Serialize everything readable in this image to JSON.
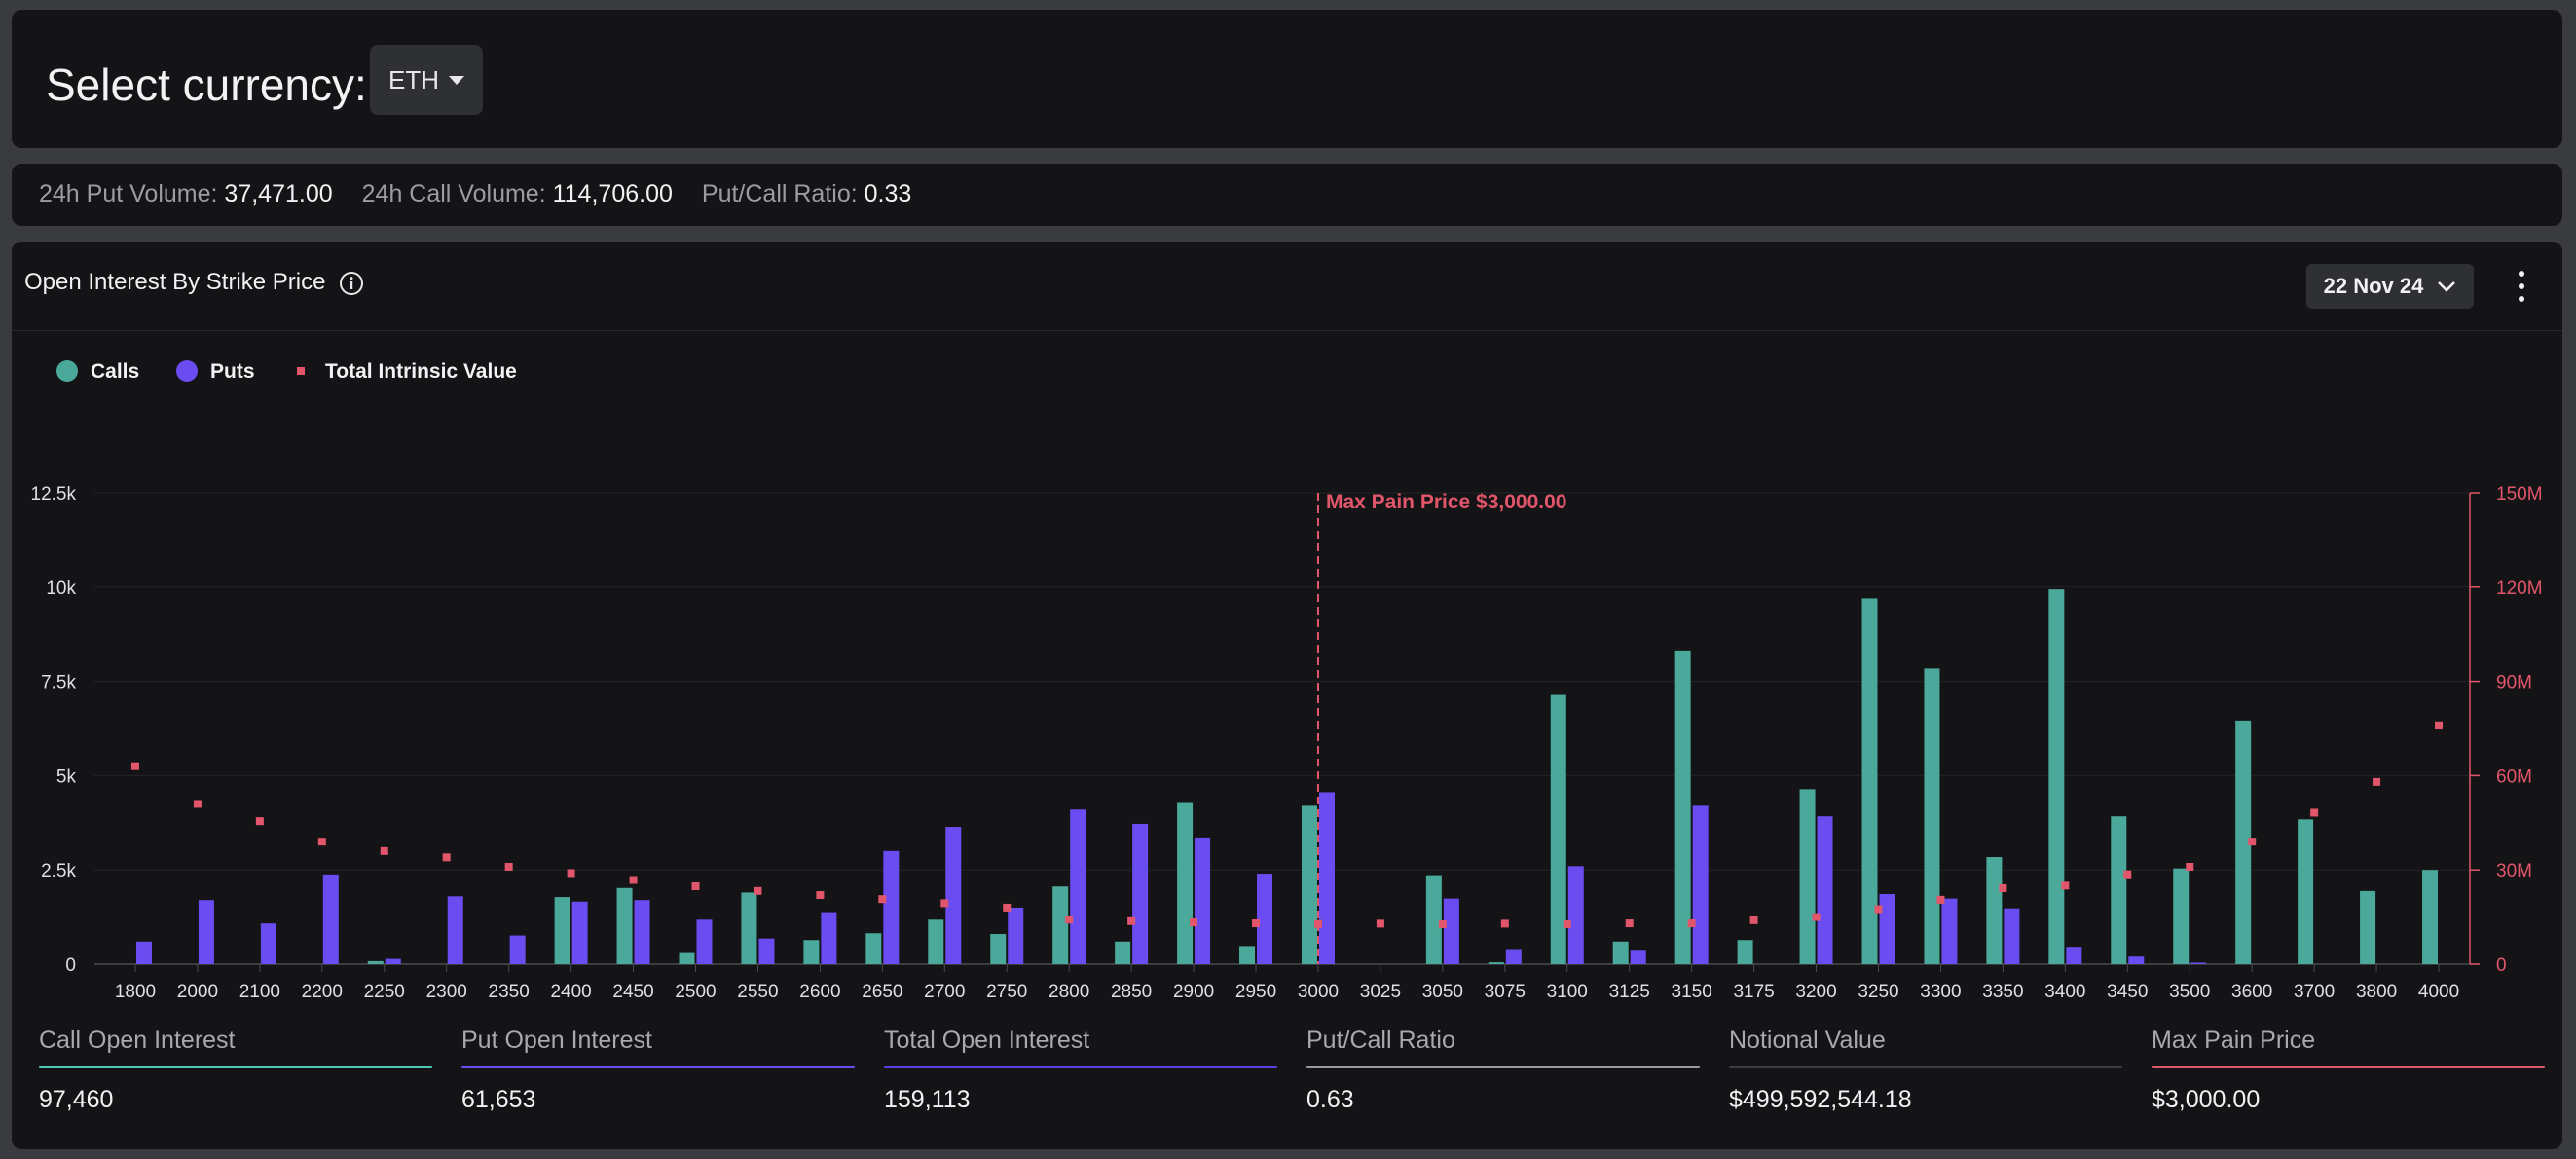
{
  "header": {
    "select_label": "Select currency:",
    "currency": "ETH"
  },
  "volume": {
    "put_label": "24h Put Volume:",
    "put_value": "37,471.00",
    "call_label": "24h Call Volume:",
    "call_value": "114,706.00",
    "ratio_label": "Put/Call Ratio:",
    "ratio_value": "0.33"
  },
  "chart_panel": {
    "title": "Open Interest By Strike Price",
    "date": "22 Nov 24"
  },
  "colors": {
    "calls": "#4aa99a",
    "puts": "#6b4cf0",
    "intrinsic": "#e2566b"
  },
  "stats": [
    {
      "label": "Call Open Interest",
      "value": "97,460",
      "color": "#4fc9b5"
    },
    {
      "label": "Put Open Interest",
      "value": "61,653",
      "color": "#6b4cf0"
    },
    {
      "label": "Total Open Interest",
      "value": "159,113",
      "color": "#5a3ee0"
    },
    {
      "label": "Put/Call Ratio",
      "value": "0.63",
      "color": "#9a9aa0"
    },
    {
      "label": "Notional Value",
      "value": "$499,592,544.18",
      "color": "#3a3b3f"
    },
    {
      "label": "Max Pain Price",
      "value": "$3,000.00",
      "color": "#e2566b"
    }
  ],
  "chart_data": {
    "type": "bar",
    "title": "Open Interest By Strike Price",
    "legend": [
      "Calls",
      "Puts",
      "Total Intrinsic Value"
    ],
    "legend_position": "top-left",
    "grid": true,
    "categories": [
      "1800",
      "2000",
      "2100",
      "2200",
      "2250",
      "2300",
      "2350",
      "2400",
      "2450",
      "2500",
      "2550",
      "2600",
      "2650",
      "2700",
      "2750",
      "2800",
      "2850",
      "2900",
      "2950",
      "3000",
      "3025",
      "3050",
      "3075",
      "3100",
      "3125",
      "3150",
      "3175",
      "3200",
      "3250",
      "3300",
      "3350",
      "3400",
      "3450",
      "3500",
      "3600",
      "3700",
      "3800",
      "4000"
    ],
    "series": [
      {
        "name": "Calls",
        "axis": "left",
        "values": [
          0,
          0,
          0,
          0,
          80,
          0,
          0,
          1780,
          2020,
          320,
          1900,
          640,
          820,
          1180,
          800,
          2060,
          600,
          4300,
          480,
          4200,
          0,
          2360,
          50,
          7140,
          600,
          8320,
          640,
          4640,
          9700,
          7840,
          2840,
          9940,
          3920,
          2540,
          6460,
          3840,
          1940,
          2500
        ]
      },
      {
        "name": "Puts",
        "axis": "left",
        "values": [
          600,
          1700,
          1080,
          2380,
          140,
          1800,
          760,
          1660,
          1700,
          1180,
          680,
          1380,
          3000,
          3640,
          1500,
          4100,
          3720,
          3360,
          2400,
          4560,
          0,
          1740,
          400,
          2600,
          380,
          4200,
          0,
          3920,
          1860,
          1740,
          1480,
          460,
          200,
          40,
          0,
          0,
          0,
          0
        ]
      },
      {
        "name": "Total Intrinsic Value",
        "axis": "right",
        "type": "scatter",
        "values": [
          63000000,
          51000000,
          45500000,
          39000000,
          36000000,
          34000000,
          31000000,
          29000000,
          26800000,
          24800000,
          23300000,
          22000000,
          20700000,
          19400000,
          18000000,
          14200000,
          13700000,
          13300000,
          13000000,
          12800000,
          12900000,
          12700000,
          12900000,
          12700000,
          13000000,
          13000000,
          14000000,
          15000000,
          17500000,
          20500000,
          24200000,
          25000000,
          28600000,
          31000000,
          39000000,
          48200000,
          58000000,
          76000000
        ]
      }
    ],
    "marker": {
      "label": "Max Pain Price $3,000.00",
      "category": "3000"
    },
    "yticks": [
      "0",
      "2.5k",
      "5k",
      "7.5k",
      "10k",
      "12.5k"
    ],
    "ylim": [
      0,
      12500
    ],
    "y2ticks": [
      "0",
      "30M",
      "60M",
      "90M",
      "120M",
      "150M"
    ],
    "y2lim": [
      0,
      150000000
    ]
  }
}
